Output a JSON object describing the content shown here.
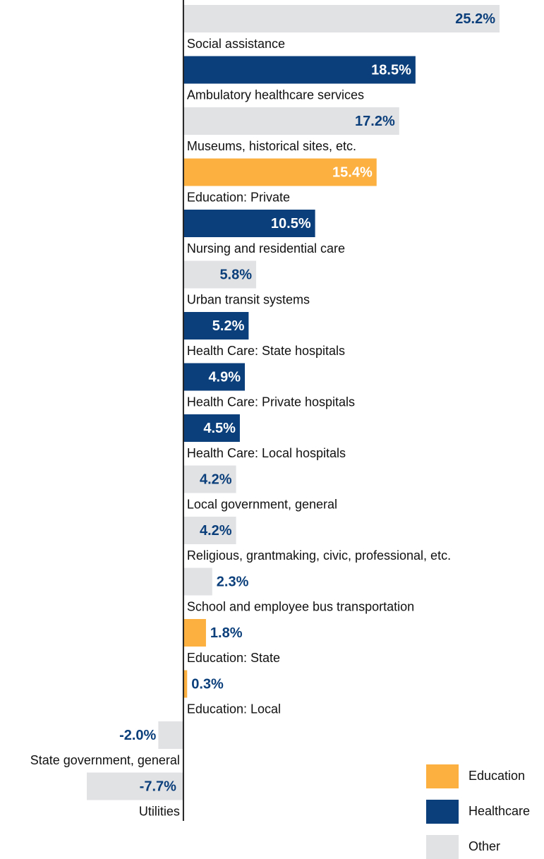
{
  "chart_data": {
    "type": "hbar",
    "categories": [
      "Social assistance",
      "Ambulatory healthcare services",
      "Museums, historical sites, etc.",
      "Education: Private",
      "Nursing and residential care",
      "Urban transit systems",
      "Health Care: State hospitals",
      "Health Care: Private hospitals",
      "Health Care: Local hospitals",
      "Local government, general",
      "Religious, grantmaking, civic, professional, etc.",
      "School and employee bus transportation",
      "Education: State",
      "Education: Local",
      "State government, general",
      "Utilities"
    ],
    "values": [
      25.2,
      18.5,
      17.2,
      15.4,
      10.5,
      5.8,
      5.2,
      4.9,
      4.5,
      4.2,
      4.2,
      2.3,
      1.8,
      0.3,
      -2.0,
      -7.7
    ],
    "value_labels": [
      "25.2%",
      "18.5%",
      "17.2%",
      "15.4%",
      "10.5%",
      "5.8%",
      "5.2%",
      "4.9%",
      "4.5%",
      "4.2%",
      "4.2%",
      "2.3%",
      "1.8%",
      "0.3%",
      "-2.0%",
      "-7.7%"
    ],
    "colors": [
      "#e1e2e4",
      "#0b3f7b",
      "#e1e2e4",
      "#fbb040",
      "#0b3f7b",
      "#e1e2e4",
      "#0b3f7b",
      "#0b3f7b",
      "#0b3f7b",
      "#e1e2e4",
      "#e1e2e4",
      "#e1e2e4",
      "#fbb040",
      "#fbb040",
      "#e1e2e4",
      "#e1e2e4"
    ],
    "legend": [
      {
        "name": "Education",
        "color": "#fbb040"
      },
      {
        "name": "Healthcare",
        "color": "#0b3f7b"
      },
      {
        "name": "Other",
        "color": "#e1e2e4"
      }
    ]
  }
}
